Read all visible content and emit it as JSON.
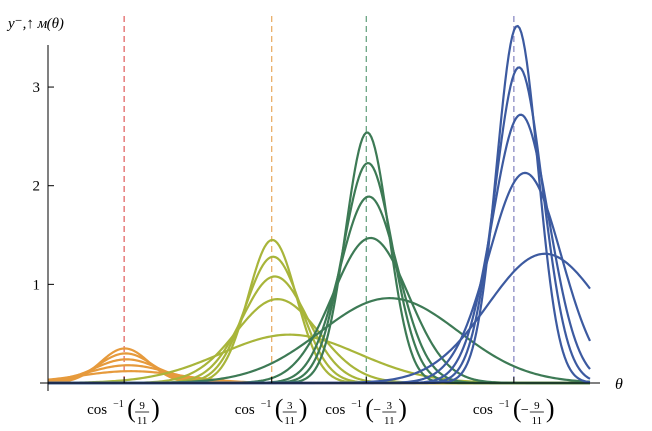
{
  "chart_data": {
    "type": "line",
    "ylabel": "y⁻,↑ ᴍ(θ)",
    "xlabel": "θ",
    "xlim": [
      0,
      3.1416
    ],
    "ylim": [
      0,
      3.7
    ],
    "yticks": [
      1,
      2,
      3
    ],
    "ytick_labels": [
      "1",
      "2",
      "3"
    ],
    "xticks": [
      {
        "x": 0.4413,
        "prefix": "cos",
        "sup": "−1",
        "sign": "",
        "num": "9",
        "den": "11"
      },
      {
        "x": 1.2967,
        "prefix": "cos",
        "sup": "−1",
        "sign": "",
        "num": "3",
        "den": "11"
      },
      {
        "x": 1.8449,
        "prefix": "cos",
        "sup": "−1",
        "sign": "−",
        "num": "3",
        "den": "11"
      },
      {
        "x": 2.7003,
        "prefix": "cos",
        "sup": "−1",
        "sign": "−",
        "num": "9",
        "den": "11"
      }
    ],
    "reference_lines": [
      {
        "x": 0.4413,
        "color": "#e05a5a"
      },
      {
        "x": 1.2967,
        "color": "#e8a85c"
      },
      {
        "x": 1.8449,
        "color": "#5f9e7a"
      },
      {
        "x": 2.7003,
        "color": "#8080c0"
      }
    ],
    "groups": [
      {
        "color": "#e69a3c",
        "curves": [
          {
            "peak_x": 0.48,
            "peak_y": 0.12,
            "width": 0.3
          },
          {
            "peak_x": 0.465,
            "peak_y": 0.18,
            "width": 0.23
          },
          {
            "peak_x": 0.455,
            "peak_y": 0.24,
            "width": 0.19
          },
          {
            "peak_x": 0.45,
            "peak_y": 0.3,
            "width": 0.16
          },
          {
            "peak_x": 0.445,
            "peak_y": 0.35,
            "width": 0.14
          }
        ]
      },
      {
        "color": "#a8b53a",
        "curves": [
          {
            "peak_x": 1.4,
            "peak_y": 0.49,
            "width": 0.4
          },
          {
            "peak_x": 1.33,
            "peak_y": 0.85,
            "width": 0.24
          },
          {
            "peak_x": 1.315,
            "peak_y": 1.08,
            "width": 0.19
          },
          {
            "peak_x": 1.305,
            "peak_y": 1.28,
            "width": 0.16
          },
          {
            "peak_x": 1.3,
            "peak_y": 1.45,
            "width": 0.14
          }
        ]
      },
      {
        "color": "#3d7a55",
        "curves": [
          {
            "peak_x": 1.98,
            "peak_y": 0.86,
            "width": 0.4
          },
          {
            "peak_x": 1.87,
            "peak_y": 1.47,
            "width": 0.22
          },
          {
            "peak_x": 1.86,
            "peak_y": 1.89,
            "width": 0.17
          },
          {
            "peak_x": 1.855,
            "peak_y": 2.23,
            "width": 0.145
          },
          {
            "peak_x": 1.85,
            "peak_y": 2.54,
            "width": 0.125
          }
        ]
      },
      {
        "color": "#3c5aa0",
        "curves": [
          {
            "peak_x": 2.88,
            "peak_y": 1.31,
            "width": 0.33
          },
          {
            "peak_x": 2.765,
            "peak_y": 2.13,
            "width": 0.21
          },
          {
            "peak_x": 2.74,
            "peak_y": 2.72,
            "width": 0.165
          },
          {
            "peak_x": 2.73,
            "peak_y": 3.2,
            "width": 0.14
          },
          {
            "peak_x": 2.72,
            "peak_y": 3.62,
            "width": 0.12
          }
        ]
      }
    ]
  }
}
